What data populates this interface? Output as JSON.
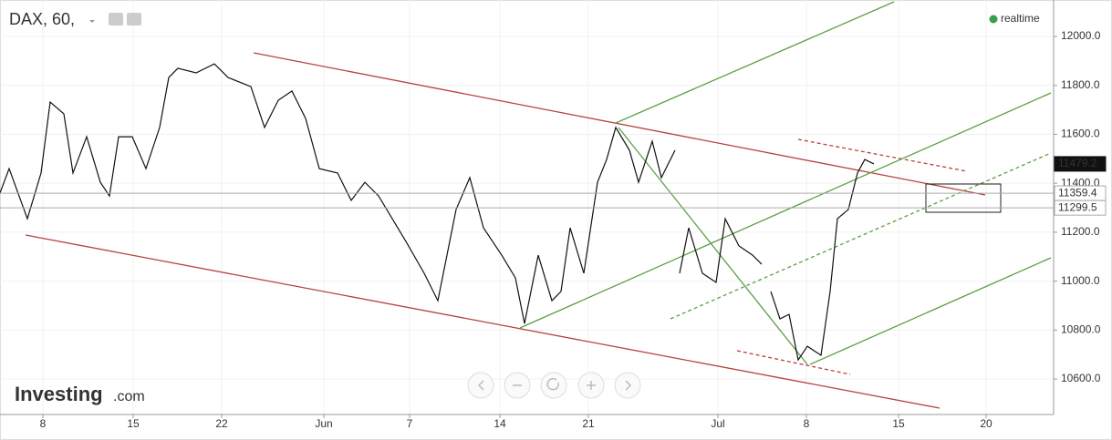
{
  "chart_data": {
    "type": "line",
    "title": "DAX, 60,",
    "status": "realtime",
    "watermark": [
      "Investing",
      ".com"
    ],
    "color": "#111111",
    "xlim": [
      0,
      57.6
    ],
    "xticks": [
      {
        "value": 2.35,
        "label": "8"
      },
      {
        "value": 7.3,
        "label": "15"
      },
      {
        "value": 12.15,
        "label": "22"
      },
      {
        "value": 17.75,
        "label": "Jun"
      },
      {
        "value": 22.45,
        "label": "7"
      },
      {
        "value": 27.4,
        "label": "14"
      },
      {
        "value": 32.25,
        "label": "21"
      },
      {
        "value": 39.35,
        "label": "Jul"
      },
      {
        "value": 44.2,
        "label": "8"
      },
      {
        "value": 49.25,
        "label": "15"
      },
      {
        "value": 54.05,
        "label": "20"
      }
    ],
    "ylim": [
      10455,
      12149
    ],
    "yticks": [
      {
        "value": 10600,
        "label": "10600.0"
      },
      {
        "value": 10800,
        "label": "10800.0"
      },
      {
        "value": 11000,
        "label": "11000.0"
      },
      {
        "value": 11200,
        "label": "11200.0"
      },
      {
        "value": 11400,
        "label": "11400.0"
      },
      {
        "value": 11600,
        "label": "11600.0"
      },
      {
        "value": 11800,
        "label": "11800.0"
      },
      {
        "value": 12000,
        "label": "12000.0"
      }
    ],
    "grid": true,
    "markers": [
      11479.2,
      11359.4,
      11299.5
    ],
    "x": [
      0,
      0.5,
      1.5,
      2.25,
      2.75,
      3.5,
      4,
      4.75,
      5.5,
      6,
      6.5,
      7.25,
      8,
      8.75,
      9.25,
      9.75,
      10.75,
      11.75,
      12.5,
      13.75,
      14.5,
      15.25,
      16,
      16.75,
      17.5,
      18.5,
      19.25,
      20,
      20.75,
      21.5,
      22.25,
      23.25,
      24,
      25,
      25.75,
      26.5,
      27.5,
      28.25,
      28.75,
      29.5,
      30.25,
      30.75,
      31.25,
      32,
      32.75,
      33.25,
      33.75,
      34.5,
      35,
      35.75,
      36.25,
      37,
      37.1,
      37.25,
      37.75,
      38.5,
      39.25,
      39.75,
      40.5,
      41.25,
      41.75,
      42,
      42.25,
      42.75,
      43.25,
      43.75,
      44.25,
      45,
      45.5,
      45.9,
      46.5,
      47,
      47.4,
      47.9
    ],
    "values": [
      11360,
      11460,
      11255,
      11442,
      11732,
      11684,
      11442,
      11590,
      11404,
      11348,
      11590,
      11590,
      11460,
      11628,
      11832,
      11870,
      11851,
      11888,
      11832,
      11795,
      11628,
      11739,
      11777,
      11665,
      11460,
      11442,
      11330,
      11404,
      11348,
      11255,
      11162,
      11032,
      10920,
      11293,
      11423,
      11218,
      11106,
      11013,
      10827,
      11106,
      10920,
      10958,
      11218,
      11032,
      11404,
      11497,
      11628,
      11535,
      11404,
      11572,
      11423,
      11535,
      null,
      11032,
      11218,
      11032,
      10995,
      11255,
      11144,
      11106,
      11069,
      null,
      10958,
      10846,
      10864,
      10678,
      10734,
      10697,
      10958,
      11255,
      11293,
      11442,
      11497,
      11479.2
    ]
  }
}
